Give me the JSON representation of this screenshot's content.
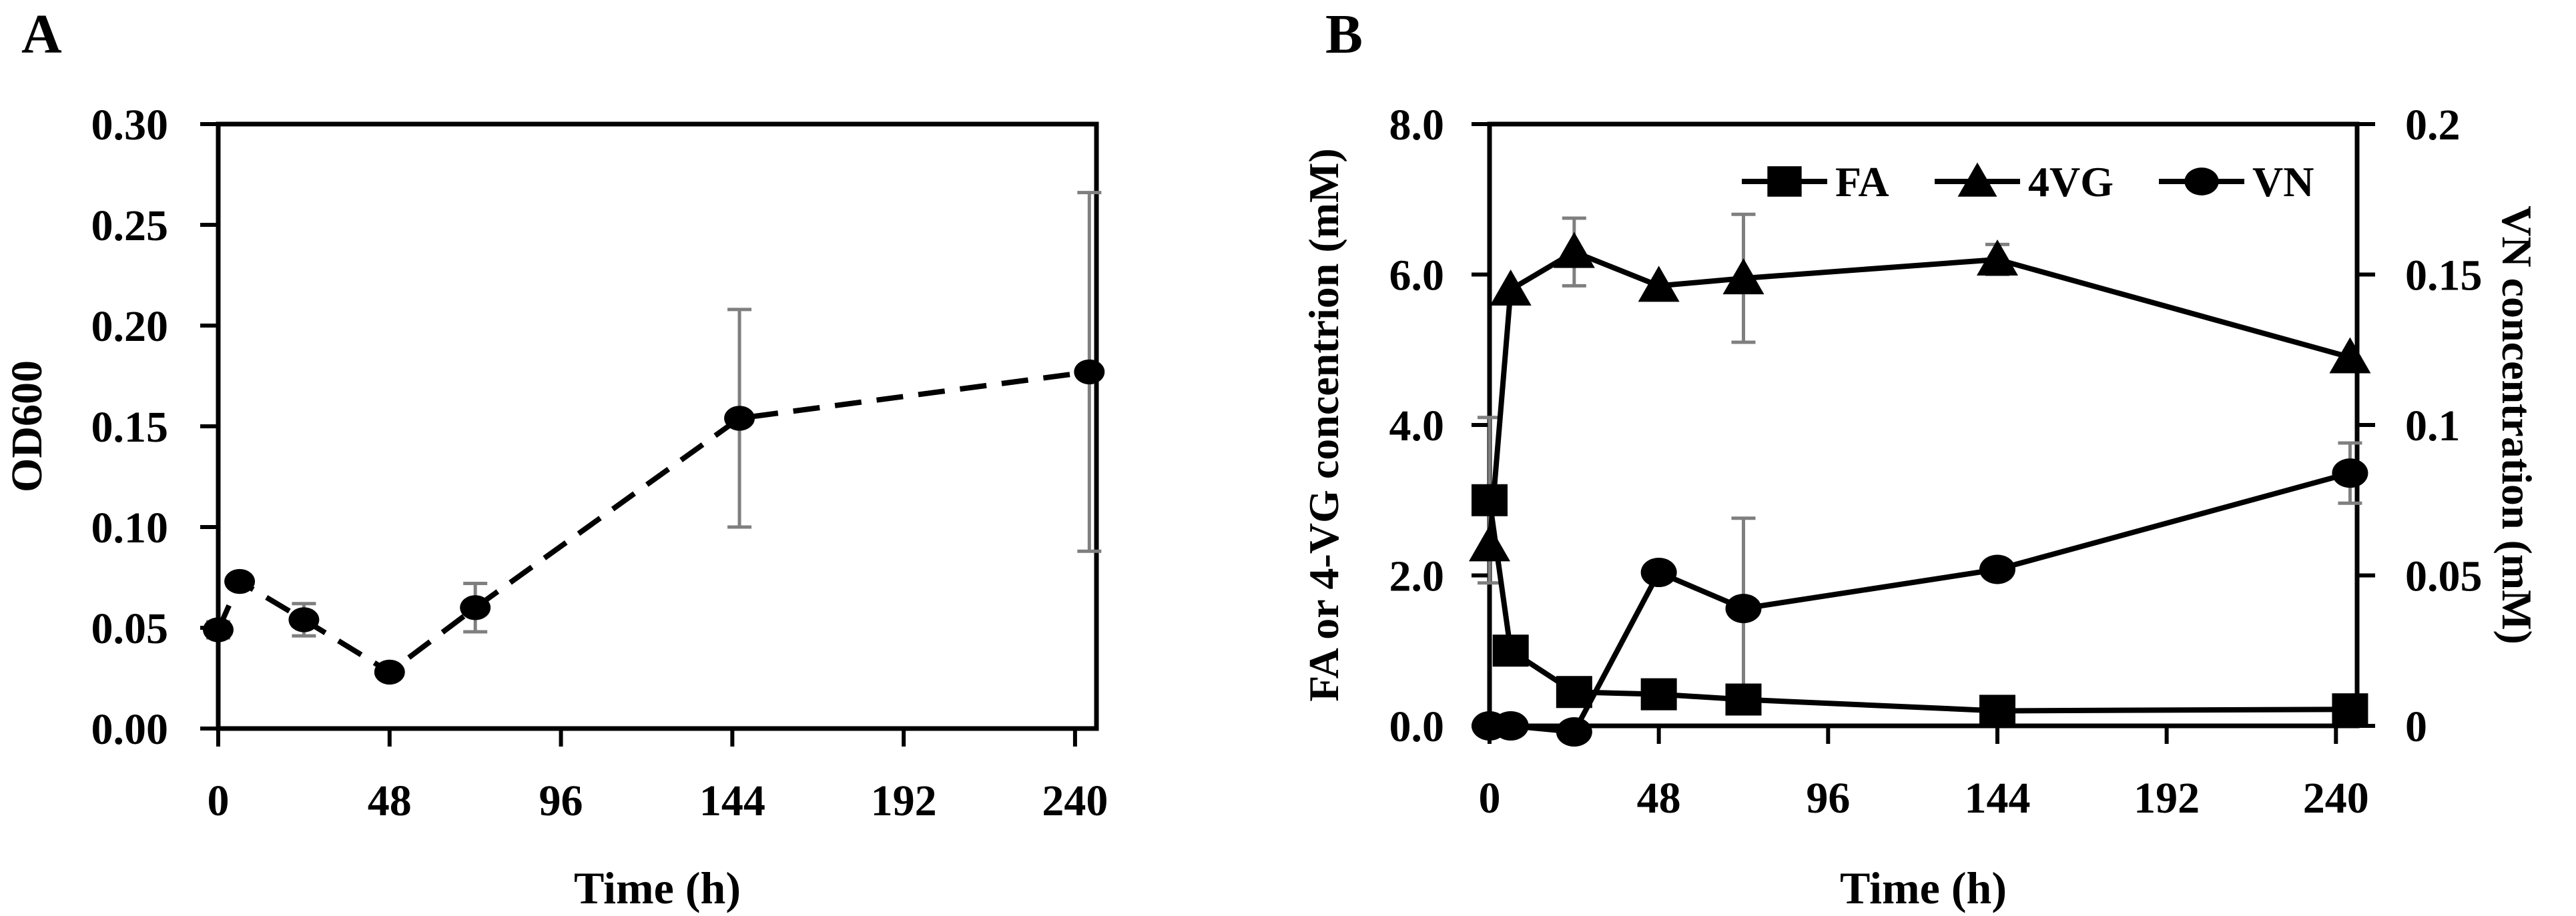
{
  "figure": {
    "background_color": "#ffffff",
    "line_color": "#000000",
    "error_bar_color": "#7f7f7f"
  },
  "chart_data": [
    {
      "type": "line",
      "panel_label": "A",
      "xlabel": "Time (h)",
      "ylabel": "OD600",
      "xlim": [
        0,
        246
      ],
      "ylim": [
        0,
        0.3
      ],
      "grid": false,
      "legend": null,
      "x_ticks": [
        0,
        48,
        96,
        144,
        192,
        240
      ],
      "x_tick_labels": [
        "0",
        "48",
        "96",
        "144",
        "192",
        "240"
      ],
      "y_ticks": [
        0,
        0.05,
        0.1,
        0.15,
        0.2,
        0.25,
        0.3
      ],
      "y_tick_labels": [
        "0.00",
        "0.05",
        "0.10",
        "0.15",
        "0.20",
        "0.25",
        "0.30"
      ],
      "series": [
        {
          "name": "OD600",
          "axis": "left",
          "marker": "circle",
          "line_style": "dashed",
          "color": "#000000",
          "error_color": "#7f7f7f",
          "x": [
            0,
            6,
            24,
            48,
            72,
            146,
            244
          ],
          "y": [
            0.049,
            0.073,
            0.054,
            0.028,
            0.06,
            0.154,
            0.177
          ],
          "yerr": [
            0.004,
            0,
            0.008,
            0,
            0.012,
            0.054,
            0.089
          ]
        }
      ]
    },
    {
      "type": "line",
      "panel_label": "B",
      "xlabel": "Time (h)",
      "ylabel_left": "FA or 4-VG concentrion (mM)",
      "ylabel_right": "VN concentration (mM)",
      "xlim": [
        0,
        246
      ],
      "ylim_left": [
        0,
        8.0
      ],
      "ylim_right": [
        0,
        0.2
      ],
      "grid": false,
      "x_ticks": [
        0,
        48,
        96,
        144,
        192,
        240
      ],
      "x_tick_labels": [
        "0",
        "48",
        "96",
        "144",
        "192",
        "240"
      ],
      "left_ticks": [
        0,
        2,
        4,
        6,
        8
      ],
      "left_tick_labels": [
        "0.0",
        "2.0",
        "4.0",
        "6.0",
        "8.0"
      ],
      "right_ticks": [
        0,
        0.05,
        0.1,
        0.15,
        0.2
      ],
      "right_tick_labels": [
        "0",
        "0.05",
        "0.1",
        "0.15",
        "0.2"
      ],
      "legend": {
        "position": "top-inside",
        "entries": [
          {
            "label": "FA",
            "marker": "square"
          },
          {
            "label": "4VG",
            "marker": "triangle"
          },
          {
            "label": "VN",
            "marker": "circle"
          }
        ]
      },
      "series": [
        {
          "name": "FA",
          "axis": "left",
          "marker": "square",
          "line_style": "solid",
          "color": "#000000",
          "error_color": "#7f7f7f",
          "x": [
            0,
            6,
            24,
            48,
            72,
            144,
            244
          ],
          "y": [
            3.0,
            1.0,
            0.45,
            0.42,
            0.35,
            0.2,
            0.22
          ],
          "yerr": [
            1.1,
            0,
            0,
            0,
            0,
            0,
            0
          ]
        },
        {
          "name": "4VG",
          "axis": "left",
          "marker": "triangle",
          "line_style": "solid",
          "color": "#000000",
          "error_color": "#7f7f7f",
          "x": [
            0,
            6,
            24,
            48,
            72,
            144,
            244
          ],
          "y": [
            2.4,
            5.8,
            6.3,
            5.85,
            5.95,
            6.2,
            4.9
          ],
          "yerr": [
            0,
            0,
            0.45,
            0,
            0.85,
            0.2,
            0
          ]
        },
        {
          "name": "VN",
          "axis": "right",
          "marker": "circle",
          "line_style": "solid",
          "color": "#000000",
          "error_color": "#7f7f7f",
          "x": [
            0,
            6,
            24,
            48,
            72,
            144,
            244
          ],
          "y": [
            0,
            0,
            -0.002,
            0.051,
            0.039,
            0.052,
            0.084
          ],
          "yerr": [
            0,
            0,
            0,
            0,
            0.03,
            0,
            0.01
          ]
        }
      ]
    }
  ]
}
